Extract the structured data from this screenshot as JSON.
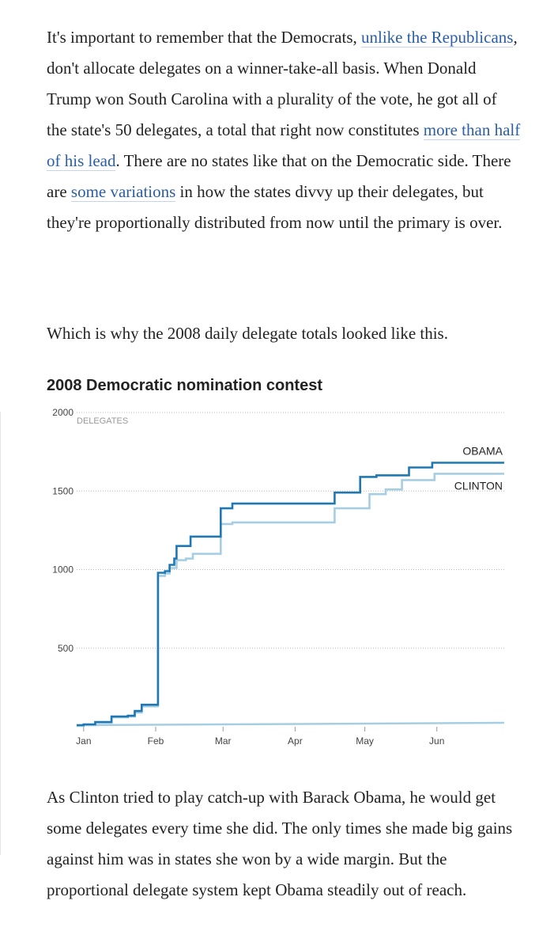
{
  "paragraph1": {
    "t1": "It's important to remember that the Democrats, ",
    "link1": "unlike the Republicans",
    "t2": ", don't allocate delegates on a winner-take-all basis. When Donald Trump won South Carolina with a plurality of the vote, he got all of the state's 50 delegates, a total that right now constitutes ",
    "link2": "more than half of his lead",
    "t3": ". There are no states like that on the Democratic side. There are ",
    "link3": "some variations",
    "t4": " in how the states divvy up their delegates, but they're proportionally distributed from now until the primary is over."
  },
  "paragraph2": "Which is why the 2008 daily delegate totals looked like this.",
  "paragraph3": "As Clinton tried to play catch-up with Barack Obama, he would get some delegates every time she did. The only times she made big gains against him was in states she won by a wide margin. But the proportional delegate system kept Obama steadily out of reach.",
  "colors": {
    "text": "#222222",
    "link": "#2a5ea8",
    "obama": "#1f78b4",
    "clinton": "#a6cee3",
    "grid": "#bbbbbb"
  },
  "chart_data": {
    "type": "line",
    "title": "2008 Democratic nomination contest",
    "ylabel": "DELEGATES",
    "xlabel": "",
    "ylim": [
      0,
      2000
    ],
    "yticks": [
      2000,
      1500,
      1000,
      500
    ],
    "xticks": [
      {
        "label": "Jan",
        "day": 0
      },
      {
        "label": "Feb",
        "day": 31
      },
      {
        "label": "Mar",
        "day": 60
      },
      {
        "label": "Apr",
        "day": 91
      },
      {
        "label": "May",
        "day": 121
      },
      {
        "label": "Jun",
        "day": 152
      }
    ],
    "xlim": [
      -3,
      181
    ],
    "series": [
      {
        "name": "OBAMA",
        "step": true,
        "points": [
          [
            -3,
            10
          ],
          [
            0,
            15
          ],
          [
            5,
            30
          ],
          [
            12,
            65
          ],
          [
            19,
            70
          ],
          [
            22,
            100
          ],
          [
            25,
            140
          ],
          [
            31,
            140
          ],
          [
            32,
            980
          ],
          [
            35,
            990
          ],
          [
            37,
            1030
          ],
          [
            39,
            1070
          ],
          [
            40,
            1150
          ],
          [
            46,
            1210
          ],
          [
            59,
            1390
          ],
          [
            64,
            1420
          ],
          [
            108,
            1490
          ],
          [
            119,
            1590
          ],
          [
            126,
            1600
          ],
          [
            140,
            1650
          ],
          [
            150,
            1680
          ],
          [
            181,
            1680
          ]
        ]
      },
      {
        "name": "CLINTON",
        "step": true,
        "points": [
          [
            -3,
            5
          ],
          [
            0,
            10
          ],
          [
            5,
            25
          ],
          [
            12,
            60
          ],
          [
            19,
            65
          ],
          [
            22,
            90
          ],
          [
            25,
            130
          ],
          [
            31,
            130
          ],
          [
            32,
            960
          ],
          [
            35,
            975
          ],
          [
            37,
            1010
          ],
          [
            40,
            1060
          ],
          [
            44,
            1070
          ],
          [
            47,
            1100
          ],
          [
            59,
            1290
          ],
          [
            64,
            1300
          ],
          [
            108,
            1390
          ],
          [
            123,
            1480
          ],
          [
            130,
            1510
          ],
          [
            137,
            1570
          ],
          [
            151,
            1610
          ],
          [
            181,
            1610
          ]
        ]
      }
    ],
    "baseline": {
      "start": 10,
      "end": 25
    }
  }
}
